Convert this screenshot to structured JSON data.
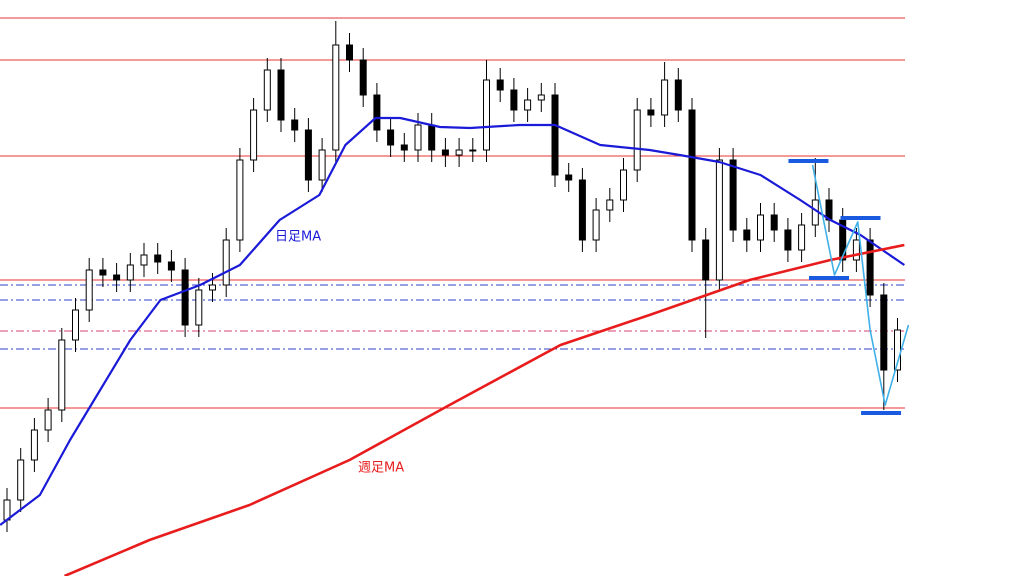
{
  "chart_data": {
    "type": "candlestick",
    "ylim": [
      0,
      576
    ],
    "candles": {
      "up_color": "#ffffff",
      "down_color": "#000000",
      "open": [
        56,
        76,
        116,
        146,
        166,
        236,
        266,
        306,
        301,
        296,
        311,
        321,
        314,
        306,
        251,
        286,
        291,
        336,
        416,
        466,
        506,
        456,
        446,
        396,
        426,
        531,
        516,
        481,
        446,
        431,
        426,
        451,
        426,
        421,
        426,
        426,
        496,
        486,
        466,
        476,
        481,
        401,
        396,
        336,
        366,
        376,
        406,
        466,
        461,
        496,
        466,
        336,
        296,
        416,
        346,
        336,
        361,
        346,
        326,
        351,
        376,
        356,
        316,
        336,
        281,
        206
      ],
      "close": [
        76,
        116,
        146,
        166,
        236,
        266,
        306,
        301,
        296,
        311,
        321,
        314,
        306,
        251,
        286,
        291,
        336,
        416,
        466,
        506,
        456,
        446,
        396,
        426,
        531,
        516,
        481,
        446,
        431,
        426,
        451,
        426,
        421,
        426,
        426,
        496,
        486,
        466,
        476,
        481,
        401,
        396,
        336,
        366,
        376,
        406,
        466,
        461,
        496,
        466,
        336,
        296,
        416,
        346,
        336,
        361,
        346,
        326,
        351,
        376,
        356,
        316,
        336,
        281,
        206,
        246
      ],
      "high": [
        88,
        128,
        158,
        178,
        248,
        278,
        318,
        318,
        313,
        323,
        333,
        333,
        326,
        318,
        298,
        303,
        348,
        428,
        478,
        518,
        518,
        468,
        458,
        438,
        555,
        543,
        528,
        493,
        458,
        443,
        463,
        463,
        438,
        438,
        438,
        516,
        508,
        498,
        488,
        493,
        493,
        413,
        408,
        378,
        388,
        418,
        478,
        478,
        514,
        508,
        478,
        348,
        428,
        428,
        358,
        373,
        373,
        358,
        363,
        418,
        388,
        368,
        348,
        348,
        293,
        258
      ],
      "low": [
        44,
        64,
        104,
        134,
        154,
        224,
        254,
        289,
        284,
        284,
        299,
        302,
        294,
        239,
        239,
        274,
        279,
        324,
        404,
        454,
        444,
        434,
        384,
        384,
        414,
        504,
        469,
        434,
        419,
        414,
        414,
        414,
        409,
        409,
        414,
        414,
        474,
        454,
        454,
        464,
        389,
        384,
        324,
        324,
        354,
        364,
        394,
        449,
        449,
        454,
        324,
        238,
        284,
        334,
        324,
        324,
        334,
        314,
        314,
        339,
        344,
        304,
        304,
        269,
        166,
        194
      ]
    },
    "series": [
      {
        "name": "日足MA",
        "color": "#1a1ad8",
        "x": [
          -0.5,
          2.4,
          4.6,
          6.8,
          9,
          11.2,
          14.1,
          17,
          19.9,
          22.8,
          24.7,
          26.9,
          28.7,
          31.6,
          33.8,
          37.4,
          40,
          43.3,
          46.9,
          49.1,
          52,
          55,
          57.9,
          60.1,
          62.3,
          65.5
        ],
        "values": [
          51,
          81,
          136,
          186,
          236,
          276,
          291,
          311,
          356,
          381,
          431,
          458,
          458,
          449,
          448,
          451,
          451,
          431,
          426,
          421,
          414,
          401,
          376,
          356,
          341,
          311
        ]
      },
      {
        "name": "週足MA",
        "color": "#e81c1c",
        "x": [
          4.2,
          10.4,
          17.7,
          25,
          32.3,
          40.4,
          46.9,
          54.2,
          60.1,
          65.5
        ],
        "values": [
          0,
          36,
          71,
          116,
          171,
          231,
          261,
          296,
          316,
          331
        ]
      }
    ],
    "levels": [
      {
        "value": 558,
        "color": "#e83030",
        "style": "solid"
      },
      {
        "value": 516,
        "color": "#e83030",
        "style": "solid"
      },
      {
        "value": 420,
        "color": "#e83030",
        "style": "solid"
      },
      {
        "value": 296,
        "color": "#e83030",
        "style": "solid"
      },
      {
        "value": 168,
        "color": "#e83030",
        "style": "solid"
      },
      {
        "value": 291,
        "color": "#3040c8",
        "style": "dashdot"
      },
      {
        "value": 276,
        "color": "#3040c8",
        "style": "dashdot"
      },
      {
        "value": 245,
        "color": "#d84070",
        "style": "dashdot"
      },
      {
        "value": 227,
        "color": "#3040c8",
        "style": "dashdot"
      }
    ],
    "zigzag": {
      "color": "#40b0e8",
      "x": [
        58.8,
        60.4,
        62.1,
        63,
        64.1,
        65.8
      ],
      "values": [
        411,
        301,
        354,
        246,
        171,
        251
      ]
    },
    "markers": {
      "color": "#1a5ae0",
      "x": [
        58.5,
        62.3,
        60,
        63.8
      ],
      "values": [
        415,
        358,
        298,
        163
      ]
    }
  }
}
